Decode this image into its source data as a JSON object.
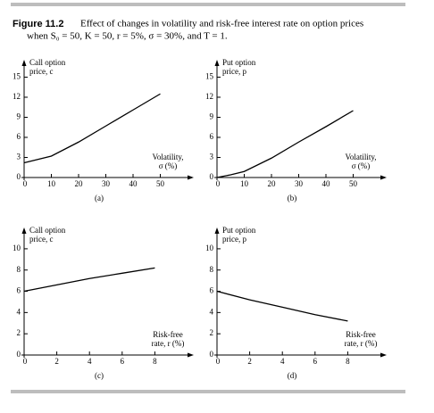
{
  "caption": {
    "label": "Figure 11.2",
    "text": "Effect of changes in volatility and risk-free interest rate on option prices",
    "text2": "when S₀ = 50, K = 50, r = 5%, σ = 30%, and T = 1."
  },
  "chart_data": [
    {
      "type": "line",
      "ylabel": [
        "Call option",
        "price, c"
      ],
      "xlabel": [
        "Volatility,",
        "σ (%)"
      ],
      "sublabel": "(a)",
      "x": [
        0,
        10,
        20,
        30,
        40,
        50
      ],
      "values": [
        2.2,
        3.2,
        5.3,
        7.7,
        10.1,
        12.5
      ],
      "color": "#000000",
      "xlim": [
        0,
        60
      ],
      "ylim": [
        0,
        16
      ],
      "xticks": [
        0,
        10,
        20,
        30,
        40,
        50
      ],
      "yticks": [
        0,
        3,
        6,
        9,
        12,
        15
      ]
    },
    {
      "type": "line",
      "ylabel": [
        "Put option",
        "price, p"
      ],
      "xlabel": [
        "Volatility,",
        "σ (%)"
      ],
      "sublabel": "(b)",
      "x": [
        0,
        5,
        10,
        20,
        30,
        40,
        50
      ],
      "values": [
        0,
        0.4,
        0.9,
        2.9,
        5.3,
        7.6,
        10.0
      ],
      "color": "#000000",
      "xlim": [
        0,
        60
      ],
      "ylim": [
        0,
        16
      ],
      "xticks": [
        0,
        10,
        20,
        30,
        40,
        50
      ],
      "yticks": [
        0,
        3,
        6,
        9,
        12,
        15
      ]
    },
    {
      "type": "line",
      "ylabel": [
        "Call option",
        "price, c"
      ],
      "xlabel": [
        "Risk-free",
        "rate, r (%)"
      ],
      "sublabel": "(c)",
      "x": [
        0,
        2,
        4,
        6,
        8
      ],
      "values": [
        6.0,
        6.6,
        7.2,
        7.7,
        8.2
      ],
      "color": "#000000",
      "xlim": [
        0,
        10
      ],
      "ylim": [
        0,
        11
      ],
      "xticks": [
        0,
        2,
        4,
        6,
        8
      ],
      "yticks": [
        0,
        2,
        4,
        6,
        8,
        10
      ]
    },
    {
      "type": "line",
      "ylabel": [
        "Put option",
        "price, p"
      ],
      "xlabel": [
        "Risk-free",
        "rate, r (%)"
      ],
      "sublabel": "(d)",
      "x": [
        0,
        2,
        4,
        6,
        8
      ],
      "values": [
        6.0,
        5.2,
        4.5,
        3.8,
        3.2
      ],
      "color": "#000000",
      "xlim": [
        0,
        10
      ],
      "ylim": [
        0,
        11
      ],
      "xticks": [
        0,
        2,
        4,
        6,
        8
      ],
      "yticks": [
        0,
        2,
        4,
        6,
        8,
        10
      ]
    }
  ]
}
